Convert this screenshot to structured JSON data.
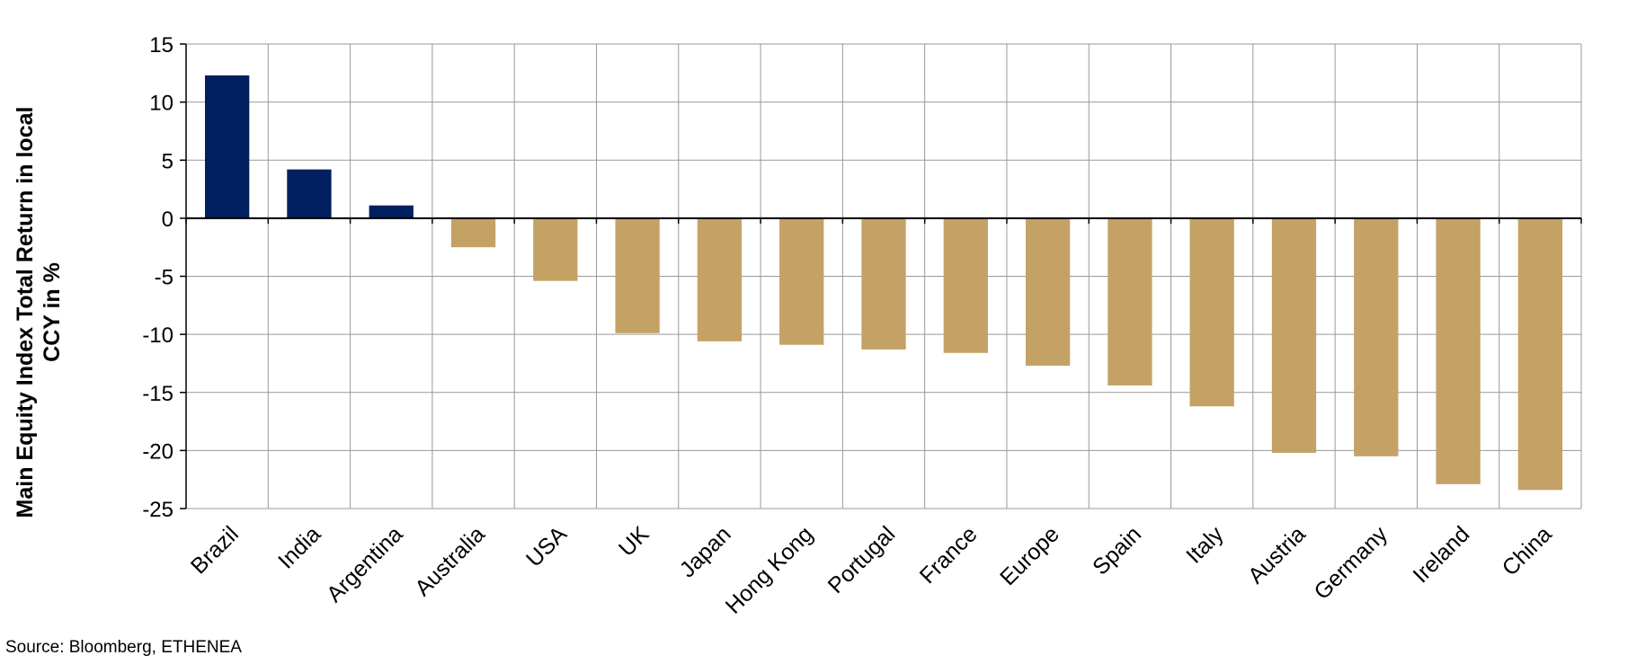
{
  "chart_data": {
    "type": "bar",
    "categories": [
      "Brazil",
      "India",
      "Argentina",
      "Australia",
      "USA",
      "UK",
      "Japan",
      "Hong Kong",
      "Portugal",
      "France",
      "Europe",
      "Spain",
      "Italy",
      "Austria",
      "Germany",
      "Ireland",
      "China"
    ],
    "values": [
      12.3,
      4.2,
      1.1,
      -2.5,
      -5.4,
      -9.9,
      -10.6,
      -10.9,
      -11.3,
      -11.6,
      -12.7,
      -14.4,
      -16.2,
      -20.2,
      -20.5,
      -22.9,
      -23.4
    ],
    "ylabel_lines": [
      "Main Equity Index Total Return in local",
      "CCY in %"
    ],
    "ylim": [
      -25,
      15
    ],
    "yticks": [
      15,
      10,
      5,
      0,
      -5,
      -10,
      -15,
      -20,
      -25
    ],
    "ytick_labels": [
      "15",
      "10",
      "5",
      "0",
      "-5",
      "-10",
      "-15",
      "-20",
      "-25"
    ],
    "grid": true,
    "colors": {
      "positive": "#002060",
      "negative": "#C4A265",
      "grid": "#999999",
      "axis": "#000000"
    }
  },
  "source": "Source: Bloomberg, ETHENEA"
}
